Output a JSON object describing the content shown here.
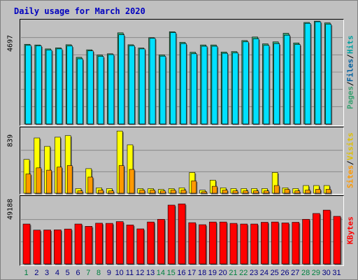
{
  "title": "Daily usage for March 2020",
  "colors": {
    "hits": "#00e0ff",
    "files": "#00b8d8",
    "pages": "#38a070",
    "visits": "#ffff00",
    "sites": "#ff9900",
    "kbytes": "#ff0000",
    "weekend_label": "#008040",
    "weekday_label": "#000080",
    "background": "#c0c0c0"
  },
  "chart_data": {
    "type": "bar",
    "categories": [
      "1",
      "2",
      "3",
      "4",
      "5",
      "6",
      "7",
      "8",
      "9",
      "10",
      "11",
      "12",
      "13",
      "14",
      "15",
      "16",
      "17",
      "18",
      "19",
      "20",
      "21",
      "22",
      "23",
      "24",
      "25",
      "26",
      "27",
      "28",
      "29",
      "30",
      "31"
    ],
    "weekend_days": [
      1,
      7,
      8,
      14,
      15,
      21,
      22,
      28,
      29
    ],
    "panels": [
      {
        "ymax_label": "4697",
        "ymax": 4697,
        "legend": [
          "Pages",
          "Files",
          "Hits"
        ],
        "series": [
          {
            "name": "Hits",
            "values": [
              3610,
              3580,
              3400,
              3450,
              3590,
              3020,
              3360,
              3120,
              3180,
              4130,
              3590,
              3440,
              3910,
              3130,
              4180,
              3700,
              3250,
              3580,
              3580,
              3260,
              3280,
              3780,
              3940,
              3630,
              3720,
              4110,
              3670,
              4600,
              4660,
              4580,
              0
            ]
          },
          {
            "name": "Files",
            "values": [
              3560,
              3540,
              3350,
              3400,
              3530,
              2950,
              3310,
              3060,
              3140,
              4040,
              3540,
              3400,
              3880,
              3070,
              4140,
              3640,
              3180,
              3520,
              3520,
              3200,
              3220,
              3720,
              3860,
              3560,
              3640,
              4020,
              3600,
              4560,
              4630,
              4520,
              0
            ]
          },
          {
            "name": "Pages",
            "values": [
              0,
              0,
              0,
              0,
              0,
              0,
              0,
              0,
              0,
              0,
              0,
              0,
              0,
              0,
              0,
              0,
              0,
              0,
              0,
              0,
              0,
              0,
              0,
              0,
              0,
              0,
              0,
              0,
              0,
              0,
              0
            ]
          }
        ]
      },
      {
        "ymax_label": "839",
        "ymax": 839,
        "legend": [
          "Sites",
          "Visits"
        ],
        "series": [
          {
            "name": "Visits",
            "values": [
              440,
              720,
              610,
              730,
              750,
              60,
              320,
              70,
              60,
              810,
              630,
              60,
              60,
              50,
              60,
              70,
              270,
              40,
              170,
              70,
              60,
              60,
              60,
              60,
              270,
              70,
              60,
              100,
              100,
              100,
              0
            ]
          },
          {
            "name": "Sites",
            "values": [
              250,
              330,
              300,
              340,
              360,
              30,
              210,
              40,
              30,
              360,
              310,
              40,
              40,
              30,
              40,
              40,
              160,
              20,
              90,
              40,
              30,
              30,
              30,
              30,
              100,
              50,
              30,
              40,
              50,
              50,
              0
            ]
          }
        ]
      },
      {
        "ymax_label": "49188",
        "ymax": 49188,
        "legend": [
          "KBytes"
        ],
        "series": [
          {
            "name": "KBytes",
            "values": [
              29500,
              25000,
              25100,
              25200,
              25800,
              29500,
              27800,
              30100,
              30000,
              31300,
              28800,
              25900,
              31000,
              33000,
              43500,
              44400,
              30500,
              29000,
              31000,
              31000,
              30000,
              29500,
              29500,
              30800,
              31000,
              30300,
              30800,
              33000,
              37300,
              39800,
              35200
            ]
          }
        ]
      }
    ]
  }
}
